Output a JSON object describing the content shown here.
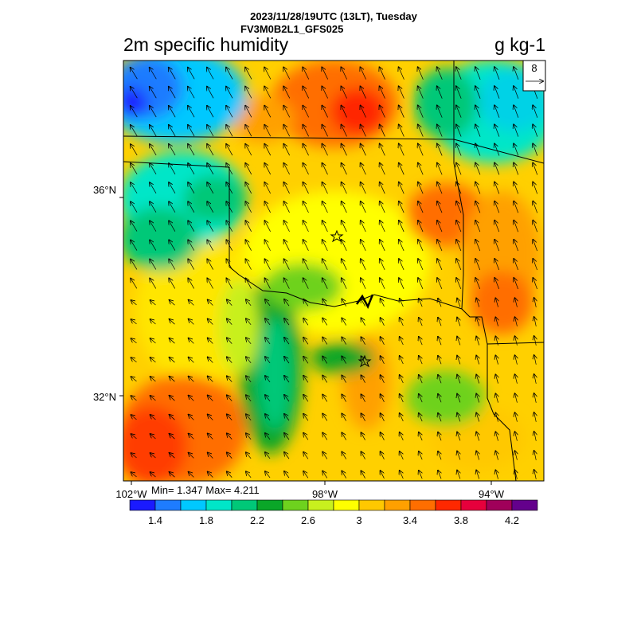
{
  "header": {
    "line1": "2023/11/28/19UTC (13LT), Tuesday",
    "line2": "FV3M0B2L1_GFS025"
  },
  "titles": {
    "left": "2m specific humidity",
    "right": "g kg-1"
  },
  "axes": {
    "lat_labels": [
      "36°N",
      "32°N"
    ],
    "lon_labels": [
      "102°W",
      "98°W",
      "94°W"
    ]
  },
  "reference_vector": {
    "value": "8"
  },
  "stats": {
    "text": "Min= 1.347 Max= 4.211"
  },
  "colorbar": {
    "colors": [
      "#1a1aff",
      "#1e7cff",
      "#00c8ff",
      "#00e6c8",
      "#00c878",
      "#0aa628",
      "#6ed21e",
      "#c8f01e",
      "#ffff00",
      "#ffc800",
      "#ffa000",
      "#ff6e00",
      "#ff2800",
      "#e6003c",
      "#a0005a",
      "#64008c"
    ],
    "labels": [
      "1.4",
      "1.8",
      "2.2",
      "2.6",
      "3",
      "3.4",
      "3.8",
      "4.2"
    ]
  },
  "map_features": {
    "stars": [
      "star-marker-north",
      "star-marker-south"
    ]
  }
}
